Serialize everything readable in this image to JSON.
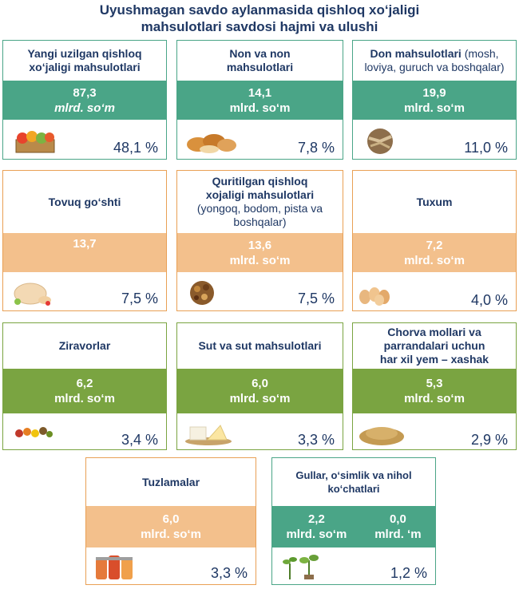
{
  "title_line1": "Uyushmagan savdo aylanmasida qishloq xo‘jaligi",
  "title_line2": "mahsulotlari savdosi hajmi va ulushi",
  "cards": [
    {
      "name_line1": "Yangi uzilgan qishloq",
      "name_line2": "xo‘jaligi mahsulotlari",
      "value": "87,3",
      "unit": "mlrd. so‘m",
      "percent": "48,1 %",
      "icon": "vegetable-crate-icon"
    },
    {
      "name_line1": "Non va non",
      "name_line2": "mahsulotlari",
      "value": "14,1",
      "unit": "mlrd. so‘m",
      "percent": "7,8 %",
      "icon": "bread-icon"
    },
    {
      "name_line1": "Don mahsulotlari",
      "name_sub": "(mosh, loviya, guruch va boshqalar)",
      "value": "19,9",
      "unit": "mlrd. so‘m",
      "percent": "11,0 %",
      "icon": "grain-basket-icon"
    },
    {
      "name_line1": "Tovuq go‘shti",
      "value": "13,7",
      "percent": "7,5 %",
      "icon": "chicken-icon"
    },
    {
      "name_line1": "Quritilgan qishloq",
      "name_line2": "xojaligi mahsulotlari",
      "name_sub": "(yongoq, bodom, pista va boshqalar)",
      "value": "13,6",
      "unit": "mlrd. so‘m",
      "percent": "7,5 %",
      "icon": "dried-fruits-icon"
    },
    {
      "name_line1": "Tuxum",
      "value": "7,2",
      "unit": "mlrd. so‘m",
      "percent": "4,0 %",
      "icon": "eggs-icon"
    },
    {
      "name_line1": "Ziravorlar",
      "value": "6,2",
      "unit": "mlrd. so‘m",
      "percent": "3,4 %",
      "icon": "spices-icon"
    },
    {
      "name_line1": "Sut va sut mahsulotlari",
      "value": "6,0",
      "unit": "mlrd. so‘m",
      "percent": "3,3 %",
      "icon": "cheese-icon"
    },
    {
      "name_line1": "Chorva mollari va",
      "name_line2": "parrandalari uchun",
      "name_line3": "har xil yem – xashak",
      "value": "5,3",
      "unit": "mlrd. so‘m",
      "percent": "2,9 %",
      "icon": "grain-pile-icon"
    },
    {
      "name_line1": "Tuzlamalar",
      "value": "6,0",
      "unit": "mlrd. so‘m",
      "percent": "3,3 %",
      "icon": "pickle-jars-icon"
    },
    {
      "name_line1": "Gullar, o‘simlik va nihol",
      "name_line2": "ko‘chatlari",
      "value_a": "2,2",
      "unit_a": "mlrd. so‘m",
      "value_b": "0,0",
      "unit_b": "mlrd. ‘m",
      "percent": "1,2 %",
      "icon": "seedlings-icon"
    }
  ],
  "colors": {
    "title": "#1f3864",
    "teal": "#4aa587",
    "orange_border": "#e9a055",
    "orange_band": "#f3c08c",
    "green": "#7aa441"
  }
}
